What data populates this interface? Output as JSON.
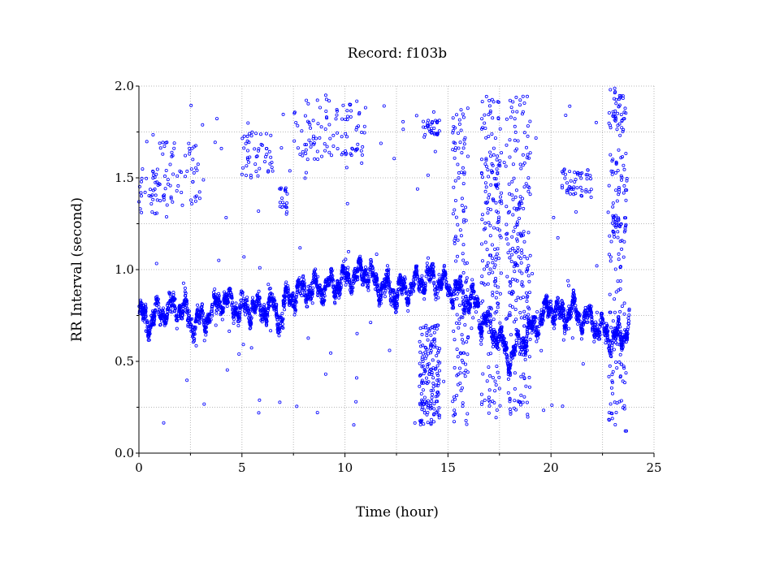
{
  "chart_data": {
    "type": "scatter",
    "title": "Record:  f103b",
    "xlabel": "Time (hour)",
    "ylabel": "RR Interval (second)",
    "xlim": [
      0,
      25
    ],
    "ylim": [
      0.0,
      2.0
    ],
    "x_ticks": [
      "0",
      "5",
      "10",
      "15",
      "20",
      "25"
    ],
    "y_ticks": [
      "0.0",
      "0.5",
      "1.0",
      "1.5",
      "2.0"
    ],
    "grid": true,
    "marker_color": "#0000ff",
    "marker": "open-circle",
    "trend_segments": [
      {
        "x": [
          0.0,
          0.5,
          1.0,
          1.5,
          2.0,
          2.5,
          3.0,
          3.5,
          4.0,
          4.5,
          5.0,
          5.5,
          6.0,
          6.5,
          7.0
        ],
        "y": [
          0.75,
          0.72,
          0.76,
          0.78,
          0.8,
          0.72,
          0.72,
          0.76,
          0.84,
          0.82,
          0.78,
          0.8,
          0.78,
          0.8,
          0.72
        ]
      },
      {
        "x": [
          7.0,
          7.5,
          8.0,
          8.5,
          9.0,
          9.5,
          10.0,
          10.5,
          11.0,
          11.5,
          12.0,
          12.5,
          13.0,
          13.5,
          14.0,
          14.5,
          15.0,
          15.5,
          16.0,
          16.5
        ],
        "y": [
          0.82,
          0.86,
          0.88,
          0.9,
          0.9,
          0.92,
          0.95,
          0.96,
          1.0,
          0.92,
          0.9,
          0.86,
          0.9,
          0.92,
          0.96,
          0.94,
          0.9,
          0.88,
          0.84,
          0.8
        ]
      },
      {
        "x": [
          16.5,
          17.0,
          17.5,
          18.0,
          18.5,
          19.0,
          19.5,
          20.0,
          20.5,
          21.0,
          21.5,
          22.0,
          22.5,
          23.0,
          23.5,
          23.8
        ],
        "y": [
          0.74,
          0.7,
          0.62,
          0.52,
          0.6,
          0.66,
          0.74,
          0.8,
          0.74,
          0.78,
          0.74,
          0.72,
          0.66,
          0.62,
          0.64,
          0.72
        ]
      }
    ],
    "outlier_clusters": [
      {
        "x": [
          0.0,
          1.0
        ],
        "y": [
          1.3,
          1.55
        ]
      },
      {
        "x": [
          1.0,
          3.0
        ],
        "y": [
          1.35,
          1.7
        ]
      },
      {
        "x": [
          5.0,
          6.5
        ],
        "y": [
          1.5,
          1.75
        ]
      },
      {
        "x": [
          6.8,
          7.2
        ],
        "y": [
          1.3,
          1.45
        ]
      },
      {
        "x": [
          7.5,
          11.0
        ],
        "y": [
          1.6,
          1.95
        ]
      },
      {
        "x": [
          13.8,
          14.6
        ],
        "y": [
          1.72,
          1.82
        ]
      },
      {
        "x": [
          16.8,
          17.6
        ],
        "y": [
          1.3,
          1.65
        ]
      },
      {
        "x": [
          18.2,
          18.7
        ],
        "y": [
          1.1,
          1.4
        ]
      },
      {
        "x": [
          20.5,
          22.0
        ],
        "y": [
          1.4,
          1.55
        ]
      },
      {
        "x": [
          23.0,
          23.6
        ],
        "y": [
          1.75,
          1.95
        ]
      },
      {
        "x": [
          23.0,
          23.7
        ],
        "y": [
          1.15,
          1.3
        ]
      }
    ],
    "vertical_bands": [
      {
        "x": [
          13.6,
          14.6
        ],
        "y": [
          0.15,
          0.7
        ]
      },
      {
        "x": [
          15.2,
          16.0
        ],
        "y": [
          0.15,
          1.9
        ]
      },
      {
        "x": [
          16.6,
          17.6
        ],
        "y": [
          0.18,
          1.95
        ]
      },
      {
        "x": [
          17.8,
          19.0
        ],
        "y": [
          0.18,
          1.95
        ]
      },
      {
        "x": [
          22.8,
          23.7
        ],
        "y": [
          0.12,
          2.0
        ]
      }
    ]
  }
}
